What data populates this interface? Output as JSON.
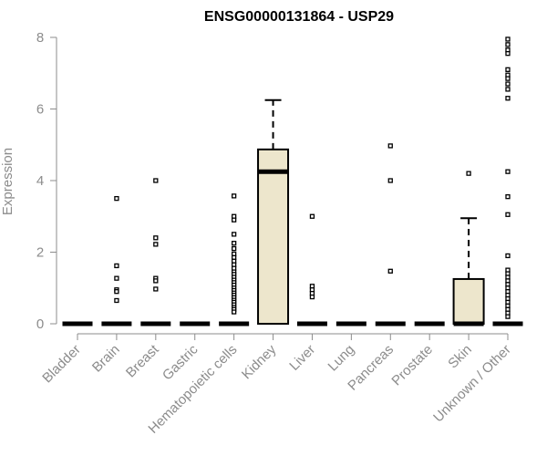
{
  "chart_data": {
    "type": "box",
    "title": "ENSG00000131864 - USP29",
    "xlabel": "",
    "ylabel": "Expression",
    "ylim": [
      0,
      8
    ],
    "yticks": [
      "0",
      "2",
      "4",
      "6",
      "8"
    ],
    "box_color": "#ede6cc",
    "categories": [
      "Bladder",
      "Brain",
      "Breast",
      "Gastric",
      "Hematopoietic cells",
      "Kidney",
      "Liver",
      "Lung",
      "Pancreas",
      "Prostate",
      "Skin",
      "Unknown / Other"
    ],
    "boxes": [
      {
        "category": "Bladder",
        "min": 0,
        "q1": 0,
        "median": 0,
        "q3": 0,
        "max": 0,
        "outliers": []
      },
      {
        "category": "Brain",
        "min": 0,
        "q1": 0,
        "median": 0,
        "q3": 0,
        "max": 0,
        "outliers": [
          3.5,
          1.62,
          1.27,
          0.95,
          0.9,
          0.65
        ]
      },
      {
        "category": "Breast",
        "min": 0,
        "q1": 0,
        "median": 0,
        "q3": 0,
        "max": 0,
        "outliers": [
          4.0,
          2.4,
          2.22,
          1.27,
          1.2,
          0.97
        ]
      },
      {
        "category": "Gastric",
        "min": 0,
        "q1": 0,
        "median": 0,
        "q3": 0,
        "max": 0,
        "outliers": []
      },
      {
        "category": "Hematopoietic cells",
        "min": 0,
        "q1": 0,
        "median": 0,
        "q3": 0,
        "max": 0,
        "outliers": [
          3.57,
          3.0,
          2.9,
          2.5,
          2.25,
          2.1,
          1.95,
          1.85,
          1.75,
          1.65,
          1.55,
          1.45,
          1.38,
          1.3,
          1.22,
          1.15,
          1.08,
          1.0,
          0.93,
          0.86,
          0.8,
          0.73,
          0.66,
          0.6,
          0.53,
          0.46,
          0.4,
          0.33
        ]
      },
      {
        "category": "Kidney",
        "min": 0,
        "q1": 0,
        "median": 4.25,
        "q3": 4.87,
        "max": 6.25,
        "outliers": []
      },
      {
        "category": "Liver",
        "min": 0,
        "q1": 0,
        "median": 0,
        "q3": 0,
        "max": 0,
        "outliers": [
          3.0,
          1.05,
          0.95,
          0.85,
          0.75
        ]
      },
      {
        "category": "Lung",
        "min": 0,
        "q1": 0,
        "median": 0,
        "q3": 0,
        "max": 0,
        "outliers": []
      },
      {
        "category": "Pancreas",
        "min": 0,
        "q1": 0,
        "median": 0,
        "q3": 0,
        "max": 0,
        "outliers": [
          4.97,
          4.0,
          1.47
        ]
      },
      {
        "category": "Prostate",
        "min": 0,
        "q1": 0,
        "median": 0,
        "q3": 0,
        "max": 0,
        "outliers": []
      },
      {
        "category": "Skin",
        "min": 0,
        "q1": 0,
        "median": 0,
        "q3": 1.25,
        "max": 2.95,
        "outliers": [
          4.2
        ]
      },
      {
        "category": "Unknown / Other",
        "min": 0,
        "q1": 0,
        "median": 0,
        "q3": 0,
        "max": 0,
        "outliers": [
          7.95,
          7.8,
          7.65,
          7.55,
          7.1,
          6.95,
          6.85,
          6.7,
          6.55,
          6.3,
          4.25,
          3.55,
          3.05,
          1.9,
          1.5,
          1.4,
          1.3,
          1.2,
          1.1,
          1.0,
          0.9,
          0.8,
          0.7,
          0.6,
          0.5,
          0.4,
          0.3,
          0.2
        ]
      }
    ]
  }
}
